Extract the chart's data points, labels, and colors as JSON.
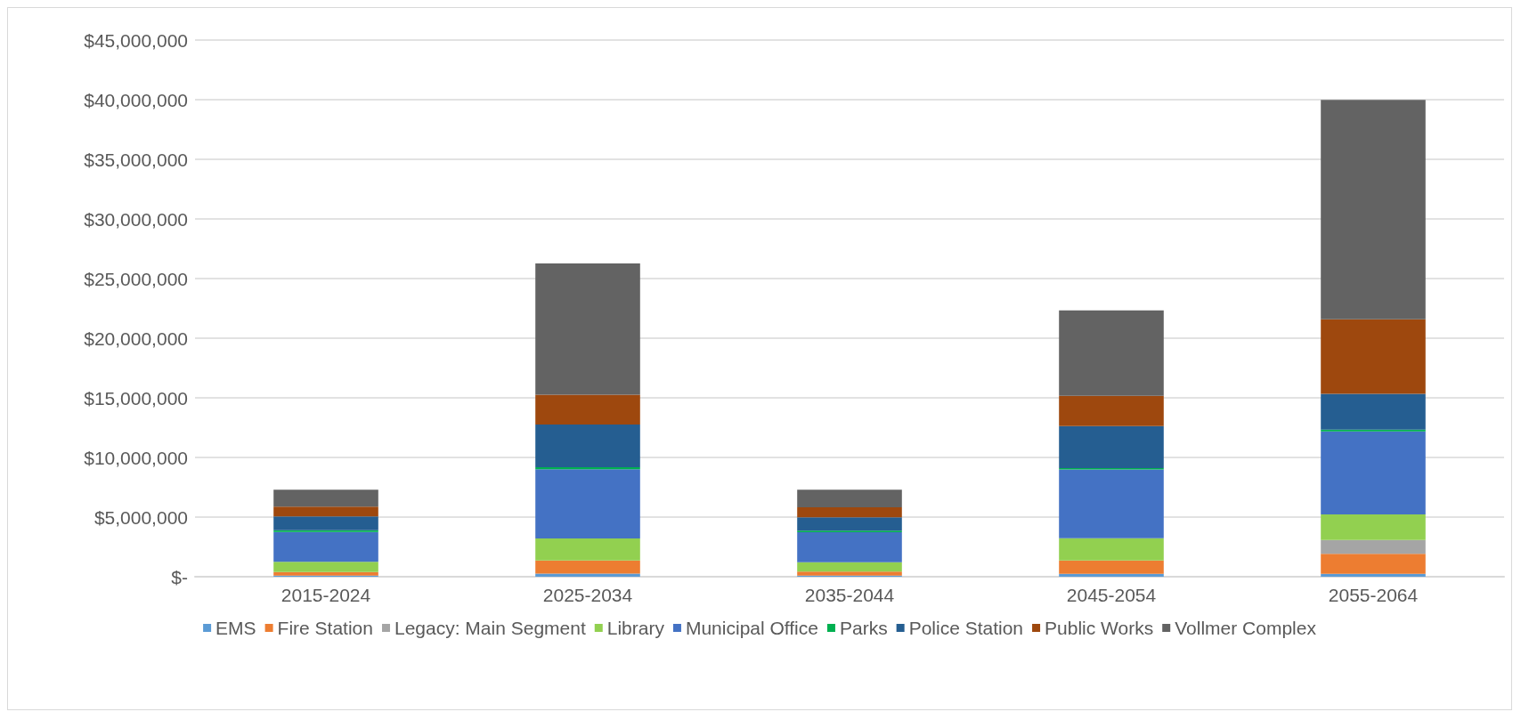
{
  "chart_data": {
    "type": "bar",
    "stacked": true,
    "categories": [
      "2015-2024",
      "2025-2034",
      "2035-2044",
      "2045-2054",
      "2055-2064"
    ],
    "series": [
      {
        "name": "EMS",
        "color": "#5b9bd5",
        "values": [
          100000,
          270000,
          100000,
          250000,
          250000
        ]
      },
      {
        "name": "Fire Station",
        "color": "#ed7d31",
        "values": [
          300000,
          1100000,
          320000,
          1120000,
          1670000
        ]
      },
      {
        "name": "Legacy: Main Segment",
        "color": "#a5a5a5",
        "values": [
          0,
          0,
          0,
          0,
          1150000
        ]
      },
      {
        "name": "Library",
        "color": "#92d050",
        "values": [
          850000,
          1840000,
          800000,
          1860000,
          2150000
        ]
      },
      {
        "name": "Municipal Office",
        "color": "#4472c4",
        "values": [
          2500000,
          5800000,
          2520000,
          5770000,
          6960000
        ]
      },
      {
        "name": "Parks",
        "color": "#00b050",
        "values": [
          150000,
          170000,
          130000,
          100000,
          160000
        ]
      },
      {
        "name": "Police Station",
        "color": "#255e91",
        "values": [
          1150000,
          3580000,
          1110000,
          3530000,
          3000000
        ]
      },
      {
        "name": "Public Works",
        "color": "#9e480e",
        "values": [
          820000,
          2510000,
          850000,
          2530000,
          6250000
        ]
      },
      {
        "name": "Vollmer Complex",
        "color": "#636363",
        "values": [
          1430000,
          11000000,
          1470000,
          7180000,
          18400000
        ]
      }
    ],
    "ylim": [
      0,
      45000000
    ],
    "yticks": [
      {
        "value": 0,
        "label": "$-"
      },
      {
        "value": 5000000,
        "label": "$5,000,000"
      },
      {
        "value": 10000000,
        "label": "$10,000,000"
      },
      {
        "value": 15000000,
        "label": "$15,000,000"
      },
      {
        "value": 20000000,
        "label": "$20,000,000"
      },
      {
        "value": 25000000,
        "label": "$25,000,000"
      },
      {
        "value": 30000000,
        "label": "$30,000,000"
      },
      {
        "value": 35000000,
        "label": "$35,000,000"
      },
      {
        "value": 40000000,
        "label": "$40,000,000"
      },
      {
        "value": 45000000,
        "label": "$45,000,000"
      }
    ],
    "grid": "y",
    "legend": "bottom"
  }
}
